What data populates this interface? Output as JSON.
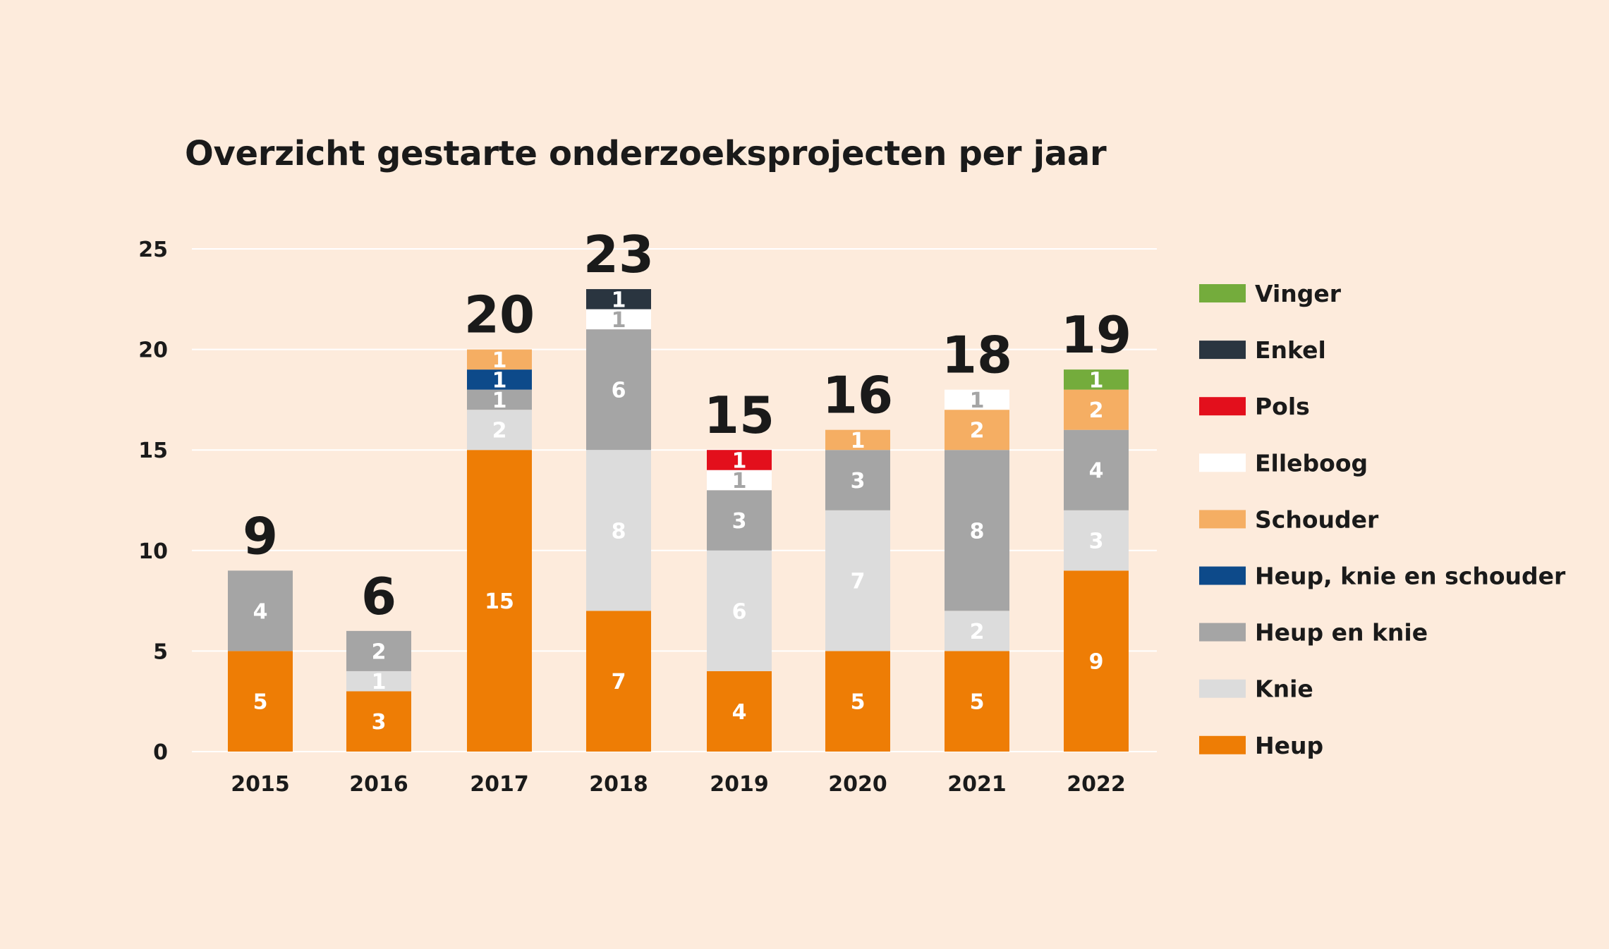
{
  "title": "Overzicht gestarte onderzoeksprojecten per jaar",
  "chart_data": {
    "type": "bar",
    "stacked": true,
    "title": "Overzicht gestarte onderzoeksprojecten per jaar",
    "categories": [
      "2015",
      "2016",
      "2017",
      "2018",
      "2019",
      "2020",
      "2021",
      "2022"
    ],
    "totals": [
      9,
      6,
      20,
      23,
      15,
      16,
      18,
      19
    ],
    "ylim": [
      0,
      25
    ],
    "yticks": [
      0,
      5,
      10,
      15,
      20,
      25
    ],
    "grid": true,
    "legend_position": "right",
    "series": [
      {
        "name": "Heup",
        "color": "#ee7d05",
        "label_color": "#ffffff",
        "values": [
          5,
          3,
          15,
          7,
          4,
          5,
          5,
          9
        ]
      },
      {
        "name": "Knie",
        "color": "#dcdcdc",
        "label_color": "#ffffff",
        "values": [
          0,
          1,
          2,
          8,
          6,
          7,
          2,
          3
        ]
      },
      {
        "name": "Heup en knie",
        "color": "#a5a5a5",
        "label_color": "#ffffff",
        "values": [
          4,
          2,
          1,
          6,
          3,
          3,
          8,
          4
        ]
      },
      {
        "name": "Heup, knie en schouder",
        "color": "#0d4a8a",
        "label_color": "#ffffff",
        "values": [
          0,
          0,
          1,
          0,
          0,
          0,
          0,
          0
        ]
      },
      {
        "name": "Schouder",
        "color": "#f5ae63",
        "label_color": "#ffffff",
        "values": [
          0,
          0,
          1,
          0,
          0,
          1,
          2,
          2
        ]
      },
      {
        "name": "Elleboog",
        "color": "#ffffff",
        "label_color": "#a5a5a5",
        "values": [
          0,
          0,
          0,
          1,
          1,
          0,
          1,
          0
        ]
      },
      {
        "name": "Pols",
        "color": "#e30f1c",
        "label_color": "#ffffff",
        "values": [
          0,
          0,
          0,
          0,
          1,
          0,
          0,
          0
        ]
      },
      {
        "name": "Enkel",
        "color": "#2a3540",
        "label_color": "#ffffff",
        "values": [
          0,
          0,
          0,
          1,
          0,
          0,
          0,
          0
        ]
      },
      {
        "name": "Vinger",
        "color": "#74ac3c",
        "label_color": "#ffffff",
        "values": [
          0,
          0,
          0,
          0,
          0,
          0,
          0,
          1
        ]
      }
    ]
  }
}
